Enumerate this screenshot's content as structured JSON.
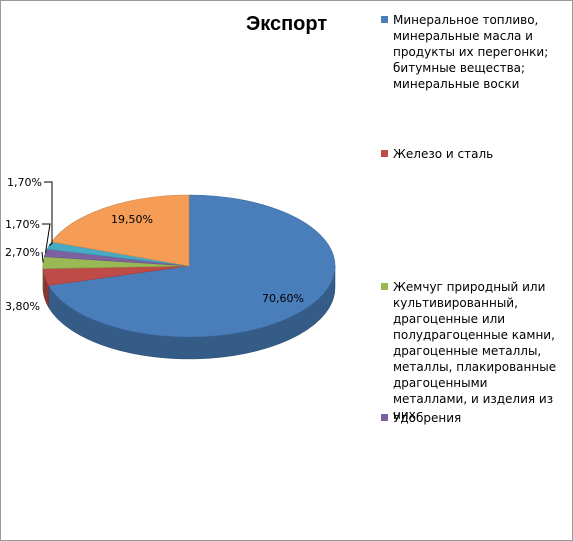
{
  "chart_data": {
    "type": "pie",
    "title": "Экспорт",
    "legend_position": "right",
    "slices": [
      {
        "name": "Минеральное топливо, минеральные масла и продукты их перегонки; битумные вещества; минеральные воски",
        "value": 70.6,
        "label": "70,60%",
        "color": "#4a7ebb"
      },
      {
        "name": "Железо и сталь",
        "value": 3.8,
        "label": "3,80%",
        "color": "#be4b48"
      },
      {
        "name": "Жемчуг природный или культивированный, драгоценные или полудрагоценные камни, драгоценные металлы, металлы, плакированные драгоценными металлами, и изделия из них",
        "value": 2.7,
        "label": "2,70%",
        "color": "#98b954"
      },
      {
        "name": "Удобрения",
        "value": 1.7,
        "label": "1,70%",
        "color": "#7d60a0"
      },
      {
        "name": "",
        "value": 1.7,
        "label": "1,70%",
        "color": "#46aac5"
      },
      {
        "name": "",
        "value": 19.5,
        "label": "19,50%",
        "color": "#f59d56"
      }
    ]
  }
}
